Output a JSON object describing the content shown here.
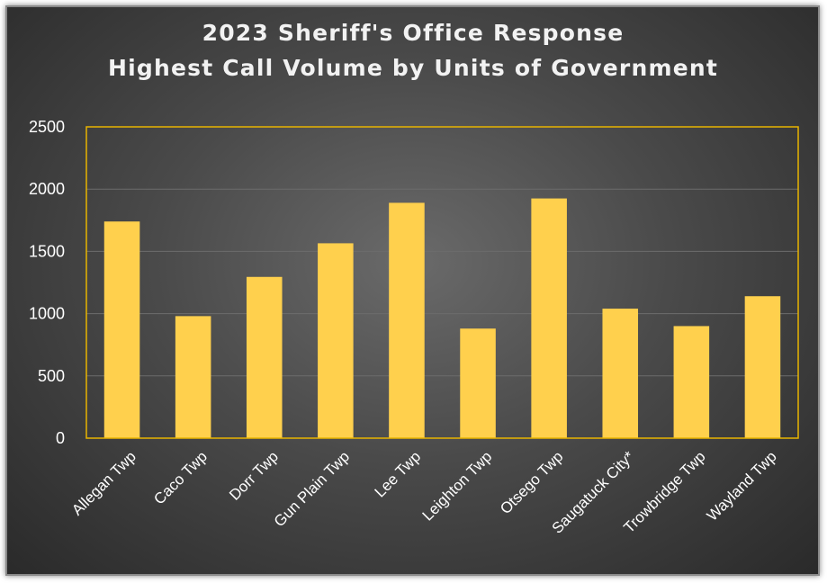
{
  "chart_data": {
    "type": "bar",
    "title": "2023 Sheriff's Office Response",
    "subtitle": "Highest Call Volume by Units of Government",
    "categories": [
      "Allegan Twp",
      "Caco Twp",
      "Dorr Twp",
      "Gun Plain Twp",
      "Lee Twp",
      "Leighton Twp",
      "Otsego Twp",
      "Saugatuck City*",
      "Trowbridge Twp",
      "Wayland Twp"
    ],
    "series": [
      {
        "values": [
          1740,
          980,
          1295,
          1565,
          1890,
          880,
          1925,
          1040,
          900,
          1140
        ]
      }
    ],
    "ylim": [
      0,
      2500
    ],
    "yticks": [
      0,
      500,
      1000,
      1500,
      2000,
      2500
    ],
    "xlabel": "",
    "ylabel": "",
    "grid": true,
    "legend": "none",
    "colors": {
      "bar": "#ffd04d",
      "plot_border": "#e8b400",
      "background": "#4a4a4a",
      "text": "#ffffff"
    }
  }
}
